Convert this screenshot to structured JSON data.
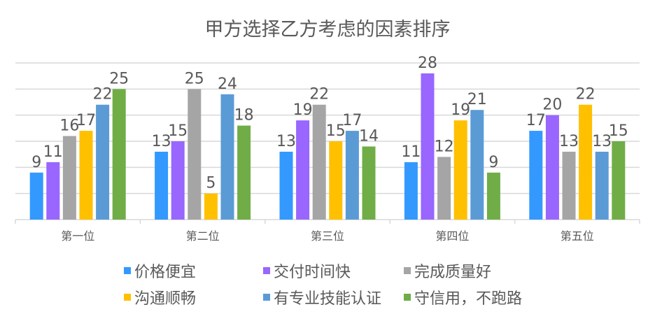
{
  "chart_data": {
    "type": "bar",
    "title": "甲方选择乙方考虑的因素排序",
    "categories": [
      "第一位",
      "第二位",
      "第三位",
      "第四位",
      "第五位"
    ],
    "series": [
      {
        "name": "价格便宜",
        "color": "#3399FF",
        "values": [
          9,
          13,
          13,
          11,
          17
        ]
      },
      {
        "name": "交付时间快",
        "color": "#9966FF",
        "values": [
          11,
          15,
          19,
          28,
          20
        ]
      },
      {
        "name": "完成质量好",
        "color": "#A5A5A5",
        "values": [
          16,
          25,
          22,
          12,
          13
        ]
      },
      {
        "name": "沟通顺畅",
        "color": "#FFC000",
        "values": [
          17,
          5,
          15,
          19,
          22
        ]
      },
      {
        "name": "有专业技能认证",
        "color": "#5B9BD5",
        "values": [
          22,
          24,
          17,
          21,
          13
        ]
      },
      {
        "name": "守信用，不跑路",
        "color": "#70AD47",
        "values": [
          25,
          18,
          14,
          9,
          15
        ]
      }
    ],
    "xlabel": "",
    "ylabel": "",
    "ylim": [
      0,
      30
    ],
    "grid": true,
    "legend": "bottom",
    "data_labels": true
  }
}
